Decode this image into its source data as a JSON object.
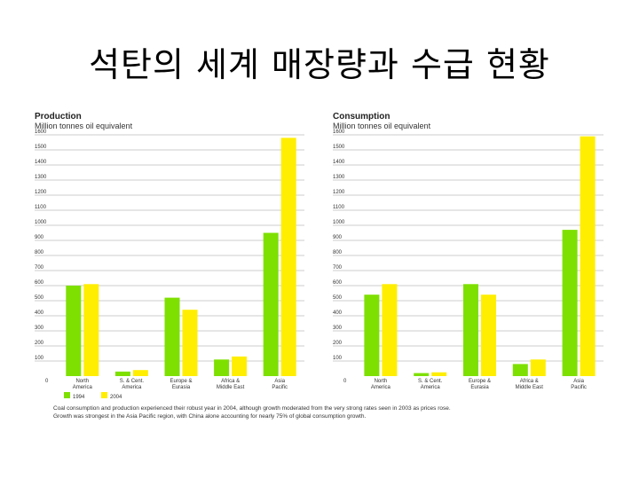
{
  "slide": {
    "title": "석탄의 세계 매장량과  수급 현황"
  },
  "legend": {
    "items": [
      {
        "label": "1994",
        "color": "#7ee000"
      },
      {
        "label": "2004",
        "color": "#ffee00"
      }
    ]
  },
  "caption": {
    "line1": "Coal consumption and production experienced their robust year in 2004, although growth moderated from the very strong rates seen in 2003 as prices rose.",
    "line2": "Growth was strongest in the Asia Pacific region, with China alone accounting for nearly 75% of global consumption growth."
  },
  "chart_data": [
    {
      "type": "bar",
      "title": "Production",
      "ylabel": "Million tonnes oil equivalent",
      "categories": [
        "North America",
        "S. & Cent. America",
        "Europe & Eurasia",
        "Africa & Middle East",
        "Asia Pacific"
      ],
      "category_lines": [
        [
          "North",
          "America"
        ],
        [
          "S. & Cent.",
          "America"
        ],
        [
          "Europe &",
          "Eurasia"
        ],
        [
          "Africa &",
          "Middle East"
        ],
        [
          "Asia",
          "Pacific"
        ]
      ],
      "series": [
        {
          "name": "1994",
          "color": "#7ee000",
          "values": [
            600,
            30,
            520,
            110,
            950
          ]
        },
        {
          "name": "2004",
          "color": "#ffee00",
          "values": [
            610,
            40,
            440,
            130,
            1580
          ]
        }
      ],
      "ylim": [
        0,
        1600
      ],
      "yticks": [
        0,
        100,
        200,
        300,
        400,
        500,
        600,
        700,
        800,
        900,
        1000,
        1100,
        1200,
        1300,
        1400,
        1500,
        1600
      ],
      "grid": true
    },
    {
      "type": "bar",
      "title": "Consumption",
      "ylabel": "Million tonnes oil equivalent",
      "categories": [
        "North America",
        "S. & Cent. America",
        "Europe & Eurasia",
        "Africa & Middle East",
        "Asia Pacific"
      ],
      "category_lines": [
        [
          "North",
          "America"
        ],
        [
          "S. & Cent.",
          "America"
        ],
        [
          "Europe &",
          "Eurasia"
        ],
        [
          "Africa &",
          "Middle East"
        ],
        [
          "Asia",
          "Pacific"
        ]
      ],
      "series": [
        {
          "name": "1994",
          "color": "#7ee000",
          "values": [
            540,
            20,
            610,
            80,
            970
          ]
        },
        {
          "name": "2004",
          "color": "#ffee00",
          "values": [
            610,
            25,
            540,
            110,
            1590
          ]
        }
      ],
      "ylim": [
        0,
        1600
      ],
      "yticks": [
        0,
        100,
        200,
        300,
        400,
        500,
        600,
        700,
        800,
        900,
        1000,
        1100,
        1200,
        1300,
        1400,
        1500,
        1600
      ],
      "grid": true
    }
  ]
}
